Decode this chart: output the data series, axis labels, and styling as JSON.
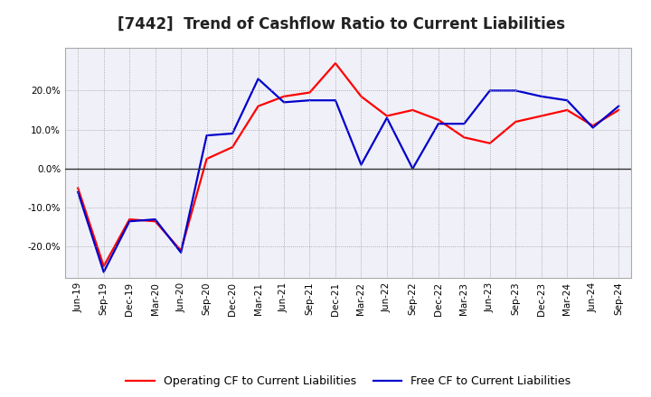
{
  "title": "[7442]  Trend of Cashflow Ratio to Current Liabilities",
  "x_labels": [
    "Jun-19",
    "Sep-19",
    "Dec-19",
    "Mar-20",
    "Jun-20",
    "Sep-20",
    "Dec-20",
    "Mar-21",
    "Jun-21",
    "Sep-21",
    "Dec-21",
    "Mar-22",
    "Jun-22",
    "Sep-22",
    "Dec-22",
    "Mar-23",
    "Jun-23",
    "Sep-23",
    "Dec-23",
    "Mar-24",
    "Jun-24",
    "Sep-24"
  ],
  "operating_cf": [
    -5.0,
    -25.0,
    -13.0,
    -13.5,
    -21.0,
    2.5,
    5.5,
    16.0,
    18.5,
    19.5,
    27.0,
    18.5,
    13.5,
    15.0,
    12.5,
    8.0,
    6.5,
    12.0,
    13.5,
    15.0,
    11.0,
    15.0
  ],
  "free_cf": [
    -6.0,
    -26.5,
    -13.5,
    -13.0,
    -21.5,
    8.5,
    9.0,
    23.0,
    17.0,
    17.5,
    17.5,
    1.0,
    13.0,
    0.0,
    11.5,
    11.5,
    20.0,
    20.0,
    18.5,
    17.5,
    10.5,
    16.0
  ],
  "operating_color": "#ff0000",
  "free_color": "#0000cc",
  "ylim": [
    -28,
    31
  ],
  "yticks": [
    -20.0,
    -10.0,
    0.0,
    10.0,
    20.0
  ],
  "background_color": "#ffffff",
  "plot_bg_color": "#f0f0f8",
  "grid_color": "#999999",
  "zero_line_color": "#333333",
  "legend_op": "Operating CF to Current Liabilities",
  "legend_free": "Free CF to Current Liabilities",
  "title_fontsize": 12,
  "tick_fontsize": 7.5,
  "legend_fontsize": 9,
  "linewidth": 1.6
}
